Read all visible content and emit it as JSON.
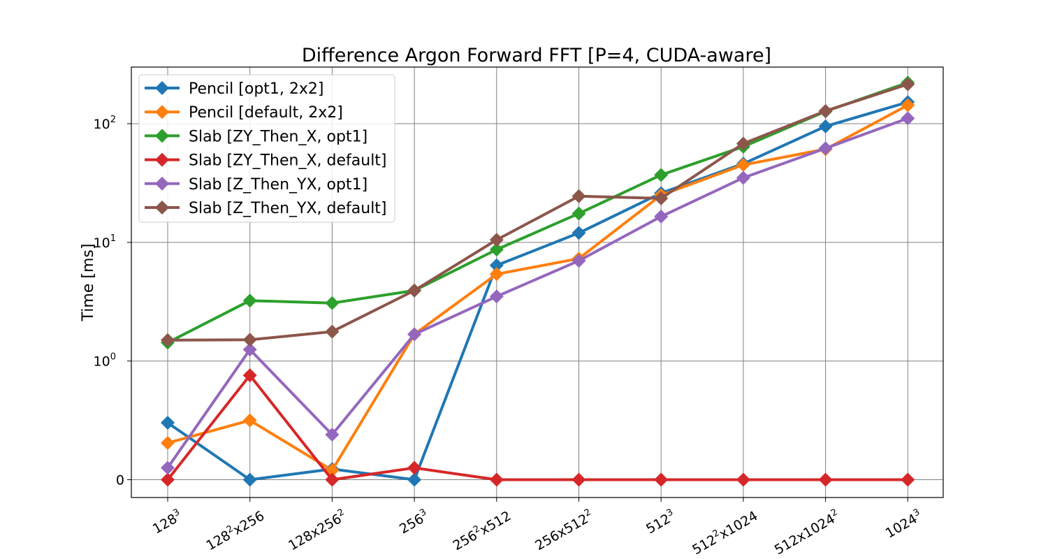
{
  "chart_data": {
    "type": "line",
    "title": "Difference Argon Forward FFT [P=4, CUDA-aware]",
    "xlabel": "",
    "ylabel": "Time [ms]",
    "y_scale": "symlog",
    "y_ticks": [
      {
        "value": 0,
        "base": "0",
        "exp": ""
      },
      {
        "value": 1,
        "base": "10",
        "exp": "0"
      },
      {
        "value": 10,
        "base": "10",
        "exp": "1"
      },
      {
        "value": 100,
        "base": "10",
        "exp": "2"
      }
    ],
    "ylim": [
      -0.15,
      300
    ],
    "grid": true,
    "legend_position": "upper-left",
    "categories": [
      {
        "base": "128",
        "exp": "3",
        "tail": "",
        "tail_exp": ""
      },
      {
        "base": "128",
        "exp": "2",
        "tail": "x256",
        "tail_exp": ""
      },
      {
        "base": "128x256",
        "exp": "2",
        "tail": "",
        "tail_exp": ""
      },
      {
        "base": "256",
        "exp": "3",
        "tail": "",
        "tail_exp": ""
      },
      {
        "base": "256",
        "exp": "2",
        "tail": "x512",
        "tail_exp": ""
      },
      {
        "base": "256x512",
        "exp": "2",
        "tail": "",
        "tail_exp": ""
      },
      {
        "base": "512",
        "exp": "3",
        "tail": "",
        "tail_exp": ""
      },
      {
        "base": "512",
        "exp": "2",
        "tail": "x1024",
        "tail_exp": ""
      },
      {
        "base": "512x1024",
        "exp": "2",
        "tail": "",
        "tail_exp": ""
      },
      {
        "base": "1024",
        "exp": "3",
        "tail": "",
        "tail_exp": ""
      }
    ],
    "series": [
      {
        "name": "Pencil [opt1, 2x2]",
        "color": "#1f77b4",
        "values": [
          0.48,
          0,
          0.09,
          0,
          6.4,
          12,
          26,
          46,
          95,
          152
        ]
      },
      {
        "name": "Pencil [default, 2x2]",
        "color": "#ff7f0e",
        "values": [
          0.31,
          0.5,
          0.08,
          1.68,
          5.4,
          7.3,
          25,
          45,
          61,
          143
        ]
      },
      {
        "name": "Slab [ZY_Then_X, opt1]",
        "color": "#2ca02c",
        "values": [
          1.43,
          3.23,
          3.08,
          3.93,
          8.7,
          17.5,
          37,
          64,
          127,
          222
        ]
      },
      {
        "name": "Slab [ZY_Then_X, default]",
        "color": "#d62728",
        "values": [
          0,
          0.88,
          0,
          0.1,
          0,
          0,
          0,
          0,
          0,
          0
        ]
      },
      {
        "name": "Slab [Z_Then_YX, opt1]",
        "color": "#9467bd",
        "values": [
          0.1,
          1.25,
          0.38,
          1.68,
          3.5,
          7.0,
          16.5,
          35,
          62,
          111
        ]
      },
      {
        "name": "Slab [Z_Then_YX, default]",
        "color": "#8c564b",
        "values": [
          1.5,
          1.51,
          1.77,
          3.93,
          10.5,
          24.5,
          23.5,
          68,
          128,
          215
        ]
      }
    ]
  }
}
